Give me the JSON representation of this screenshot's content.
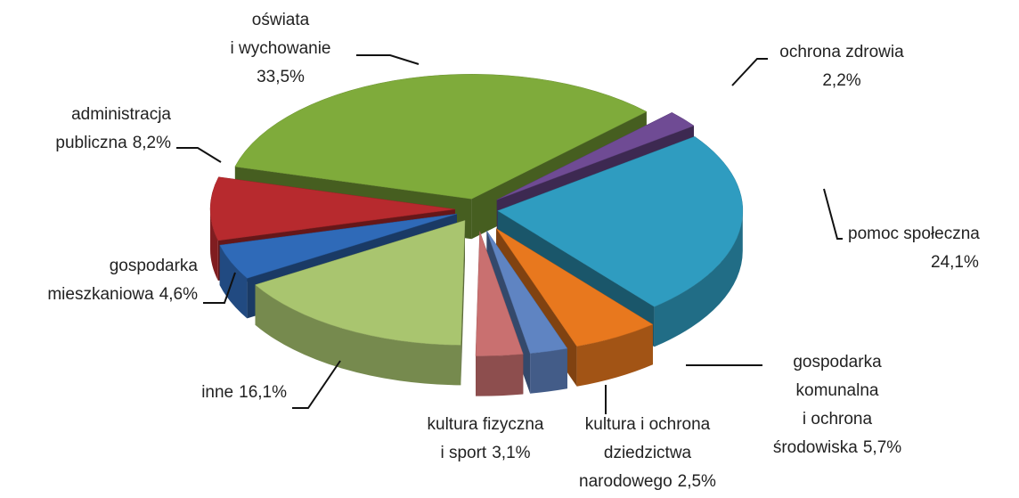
{
  "chart_data": {
    "type": "pie3d",
    "categories": [
      "oświata\ni wychowanie",
      "ochrona zdrowia",
      "pomoc społeczna",
      "gospodarka\nkomunalna\ni ochrona\nśrodowiska",
      "kultura i ochrona\ndziedzictwa\nnarodowego",
      "kultura fizyczna\ni sport",
      "inne",
      "gospodarka\nmieszkaniowa",
      "administracja\npubliczna"
    ],
    "values": [
      33.5,
      2.2,
      24.1,
      5.7,
      2.5,
      3.1,
      16.1,
      4.6,
      8.2
    ],
    "value_labels": [
      "33,5%",
      "2,2%",
      "24,1%",
      "5,7%",
      "2,5%",
      "3,1%",
      "16,1%",
      "4,6%",
      "8,2%"
    ],
    "colors": [
      "#7fab3b",
      "#6f4b94",
      "#2f9cc0",
      "#e8781e",
      "#5f84c2",
      "#c97070",
      "#a9c56f",
      "#2f6ab8",
      "#b72a2e"
    ]
  }
}
